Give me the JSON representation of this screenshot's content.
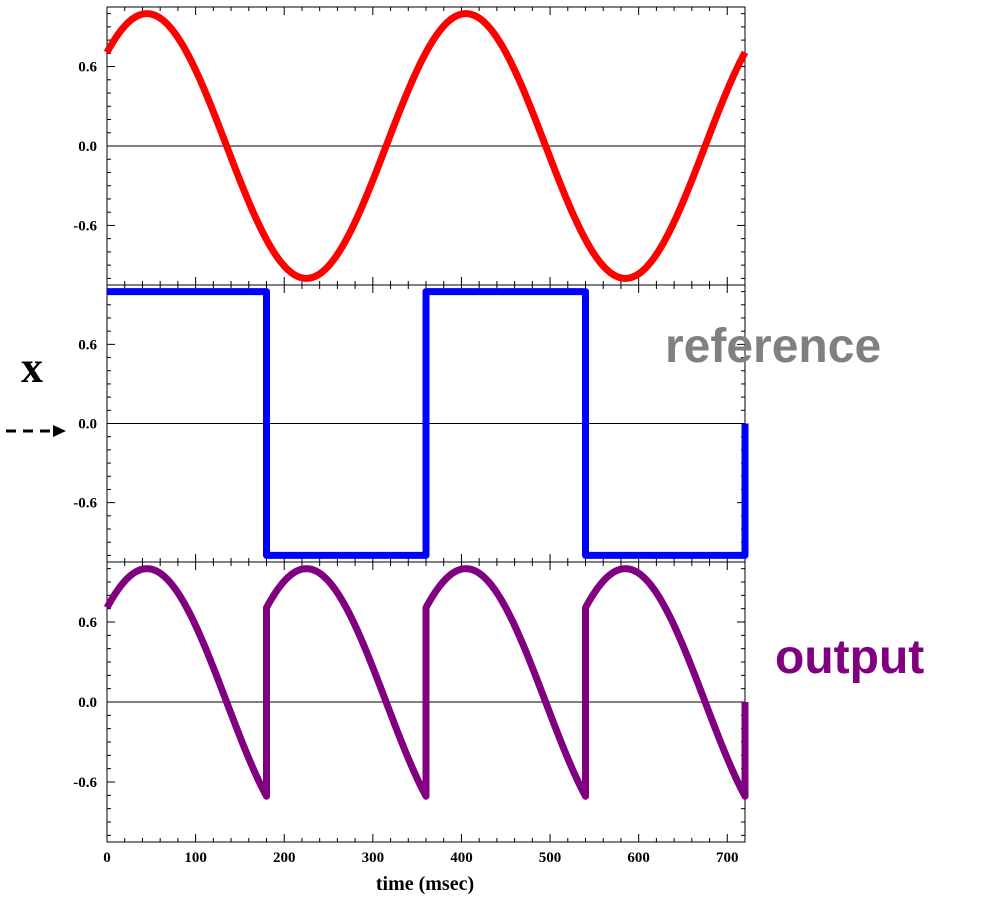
{
  "chart_data": {
    "type": "line",
    "xlabel": "time (msec)",
    "xlim": [
      0,
      720
    ],
    "x_ticks": [
      0,
      100,
      200,
      300,
      400,
      500,
      600,
      700
    ],
    "x_tick_labels": [
      "0",
      "100",
      "200",
      "300",
      "400",
      "500",
      "600",
      "700"
    ],
    "panels": [
      {
        "ylim": [
          -1.05,
          1.05
        ],
        "y_ticks": [
          0.6,
          0.0,
          -0.6
        ],
        "y_tick_labels": [
          "0.6",
          "0.0",
          "-0.6"
        ],
        "zero_line": true,
        "series": [
          {
            "color": "#ff0000",
            "waveform": "sine",
            "amplitude": 1.0,
            "period_ms": 360,
            "phase_deg": 45,
            "x_range": [
              0,
              720
            ]
          }
        ]
      },
      {
        "ylim": [
          -1.05,
          1.05
        ],
        "y_ticks": [
          0.6,
          0.0,
          -0.6
        ],
        "y_tick_labels": [
          "0.6",
          "0.0",
          "-0.6"
        ],
        "zero_line": true,
        "series": [
          {
            "color": "#0000ff",
            "waveform": "square",
            "amplitude": 1.0,
            "half_period_ms": 180,
            "x_range": [
              0,
              720
            ],
            "edges_ms": [
              180,
              360,
              540,
              720
            ]
          }
        ]
      },
      {
        "ylim": [
          -1.05,
          1.05
        ],
        "y_ticks": [
          0.6,
          0.0,
          -0.6
        ],
        "y_tick_labels": [
          "0.6",
          "0.0",
          "-0.6"
        ],
        "zero_line": true,
        "series": [
          {
            "color": "#800080",
            "waveform": "reset-sine",
            "amplitude": 1.0,
            "period_ms": 360,
            "phase_deg": 45,
            "reset_every_ms": 180,
            "x_range": [
              0,
              720
            ]
          }
        ]
      }
    ]
  },
  "annotations": {
    "reference_label": "reference",
    "reference_color": "#808080",
    "output_label": "output",
    "output_color": "#800080",
    "x_label": "x",
    "arrow_style": "dashed"
  }
}
